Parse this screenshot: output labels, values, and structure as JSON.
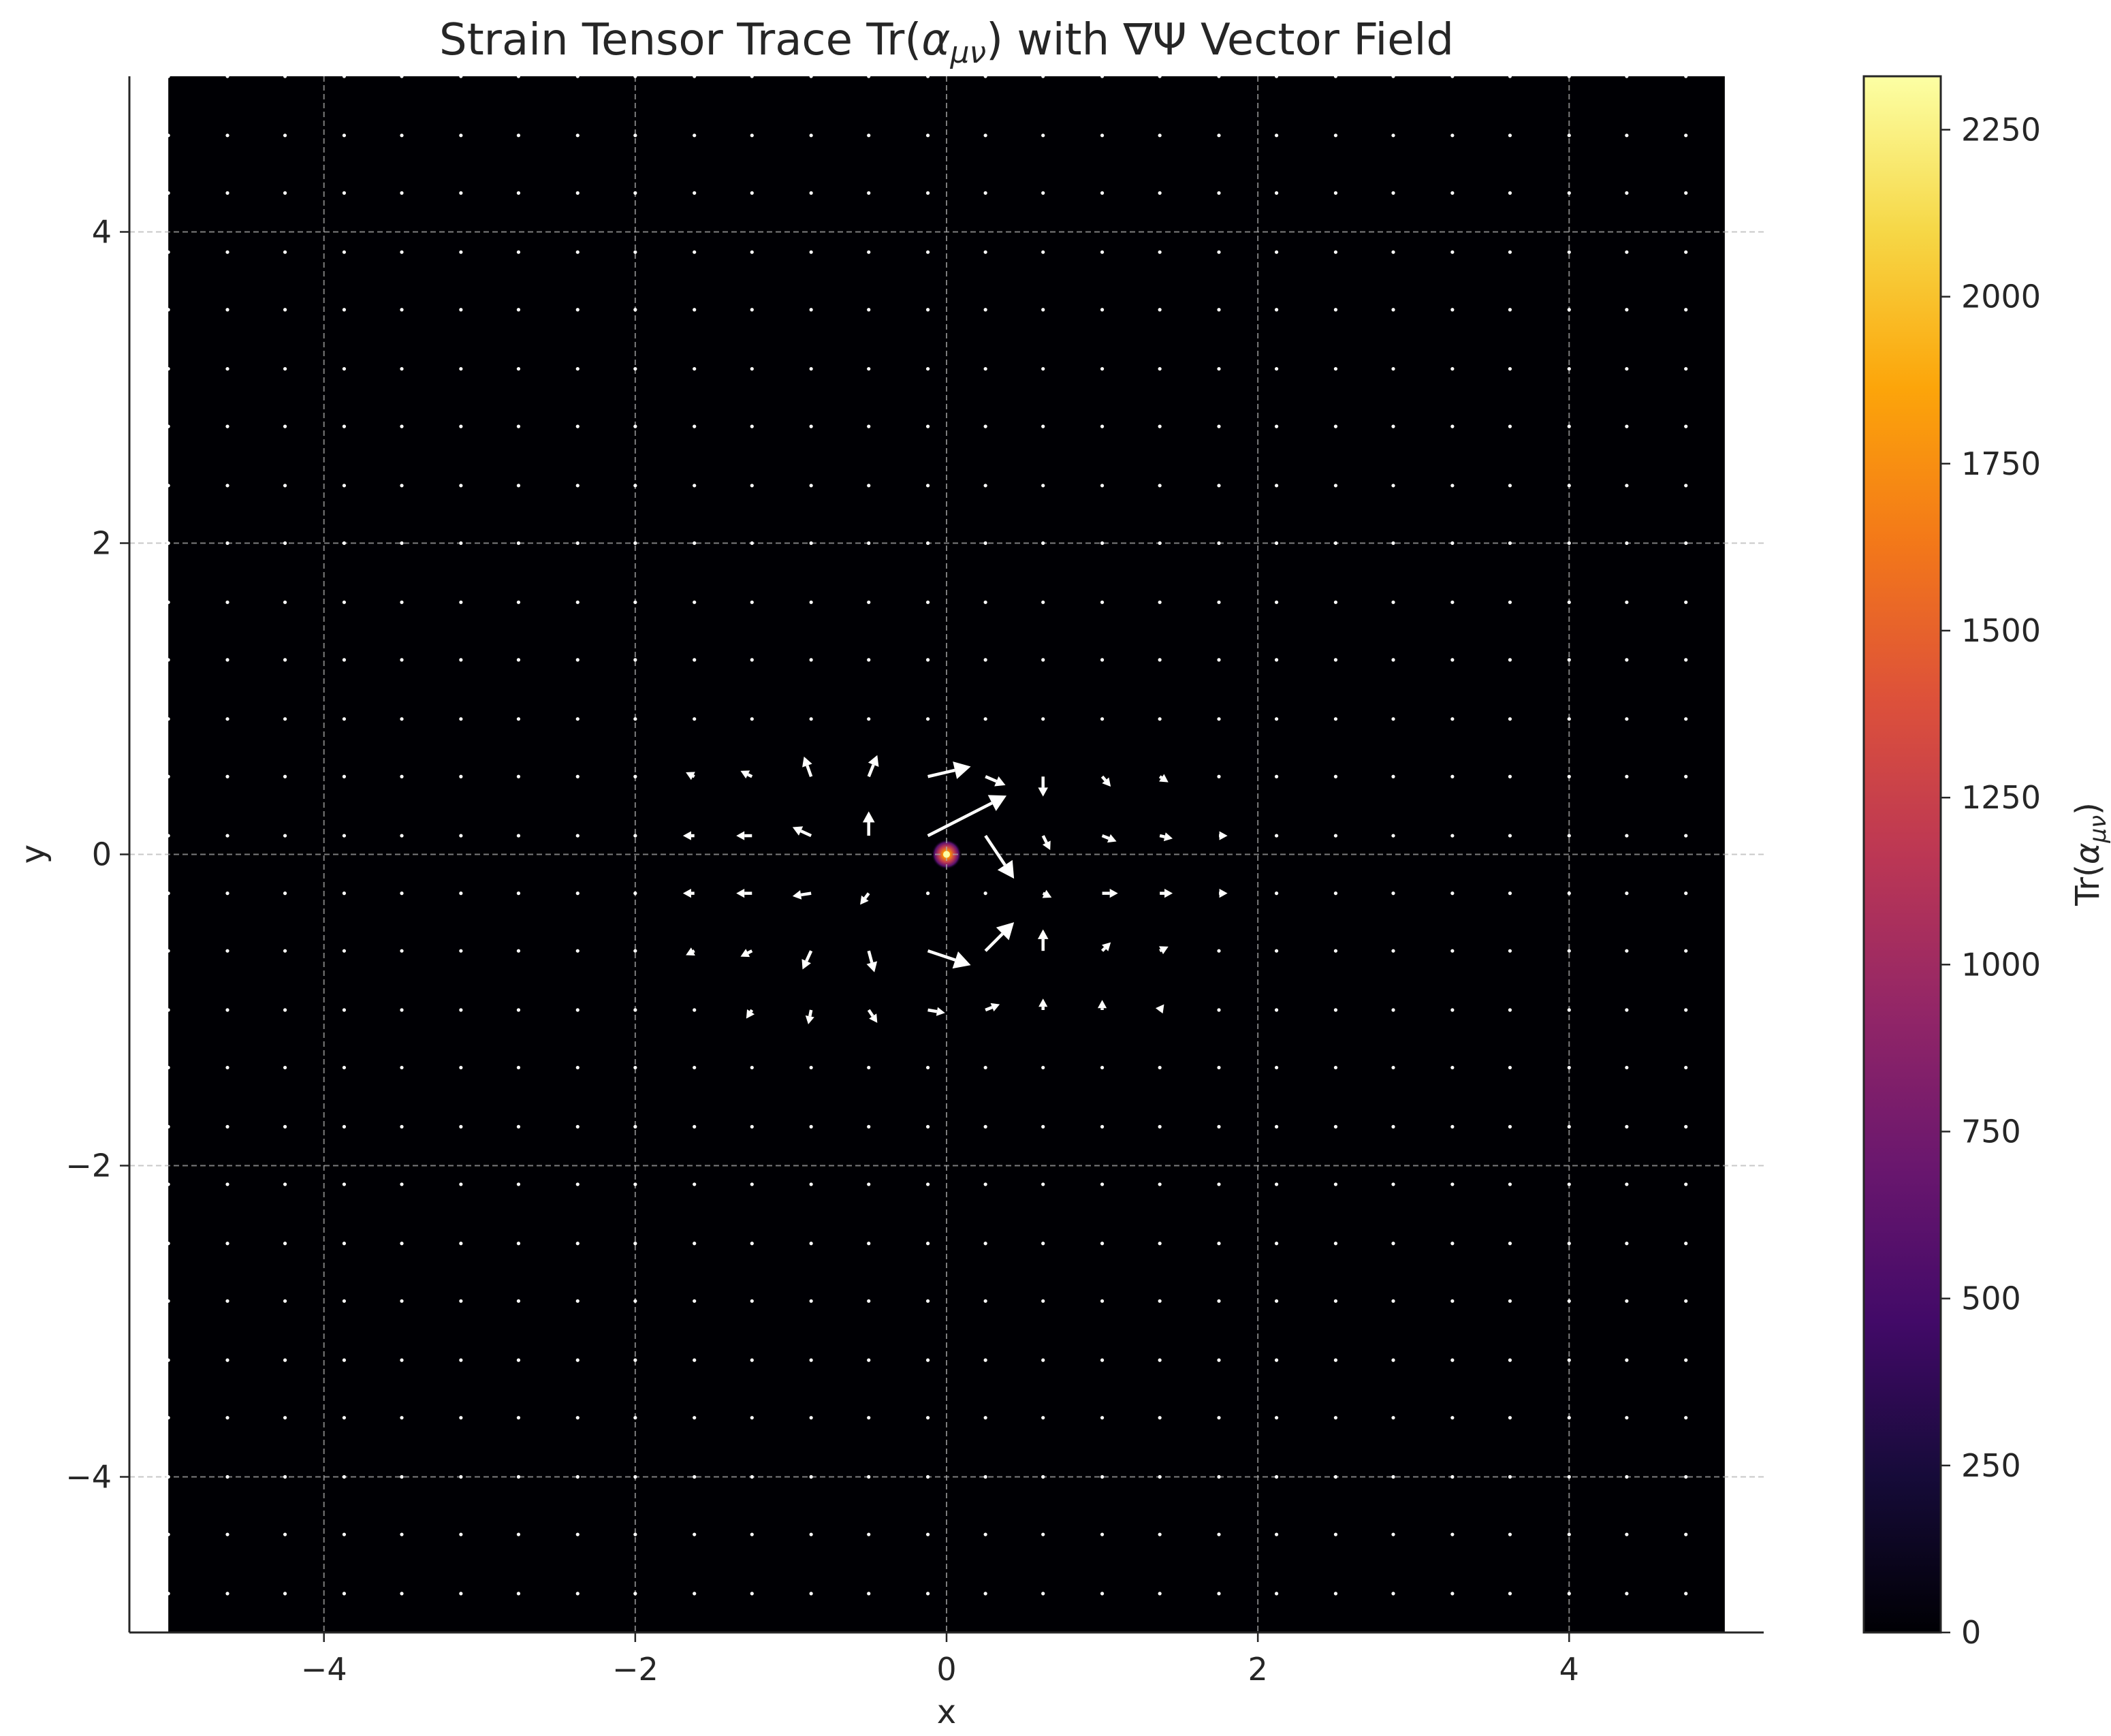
{
  "chart_data": {
    "type": "heatmap",
    "title": "Strain Tensor Trace Tr(",
    "title_symbol": "α",
    "title_subscript": "μν",
    "title_suffix": ") with ∇Ψ Vector Field",
    "xlabel": "x",
    "ylabel": "y",
    "xlim": [
      -5.25,
      5.25
    ],
    "ylim": [
      -5.0,
      5.0
    ],
    "image_extent": [
      -5.0,
      5.0,
      -5.0,
      5.0
    ],
    "xticks": [
      -4,
      -2,
      0,
      2,
      4
    ],
    "yticks": [
      -4,
      -2,
      0,
      2,
      4
    ],
    "xtick_labels": [
      "−4",
      "−2",
      "0",
      "2",
      "4"
    ],
    "ytick_labels": [
      "−4",
      "−2",
      "0",
      "2",
      "4"
    ],
    "grid": true,
    "colormap": "inferno",
    "colorbar": {
      "label": "Tr(",
      "label_symbol": "α",
      "label_subscript": "μν",
      "label_suffix": ")",
      "range": [
        0,
        2330
      ],
      "ticks": [
        0,
        250,
        500,
        750,
        1000,
        1250,
        1500,
        1750,
        2000,
        2250
      ],
      "tick_labels": [
        "0",
        "250",
        "500",
        "750",
        "1000",
        "1250",
        "1500",
        "1750",
        "2000",
        "2250"
      ]
    },
    "peak": {
      "x": 0,
      "y": 0,
      "value": 2330
    },
    "quiver": {
      "x": [
        -5.0,
        -4.62,
        -4.25,
        -3.87,
        -3.5,
        -3.12,
        -2.75,
        -2.37,
        -2.0,
        -1.62,
        -1.25,
        -0.87,
        -0.5,
        -0.12,
        0.25,
        0.62,
        1.0,
        1.37,
        1.75,
        2.12,
        2.5,
        2.87,
        3.25,
        3.62,
        4.0,
        4.37,
        4.75
      ],
      "y": [
        -4.75,
        -4.37,
        -4.0,
        -3.62,
        -3.25,
        -2.87,
        -2.5,
        -2.12,
        -1.75,
        -1.37,
        -1.0,
        -0.62,
        -0.25,
        0.12,
        0.5,
        0.87,
        1.25,
        1.62,
        2.0,
        2.37,
        2.75,
        3.12,
        3.5,
        3.87,
        4.25,
        4.62,
        5.0
      ],
      "color": "#ffffff",
      "arrows": [
        {
          "x": -1.62,
          "y": 0.5,
          "u": -0.06,
          "v": 0.03
        },
        {
          "x": -1.62,
          "y": 0.12,
          "u": -0.08,
          "v": 0.0
        },
        {
          "x": -1.62,
          "y": -0.25,
          "u": -0.08,
          "v": 0.0
        },
        {
          "x": -1.62,
          "y": -0.62,
          "u": -0.06,
          "v": -0.03
        },
        {
          "x": -1.25,
          "y": 1.0,
          "u": -0.04,
          "v": 0.06
        },
        {
          "x": -1.25,
          "y": 0.5,
          "u": -0.08,
          "v": 0.04
        },
        {
          "x": -1.25,
          "y": 0.12,
          "u": -0.11,
          "v": 0.0
        },
        {
          "x": -1.25,
          "y": -0.25,
          "u": -0.11,
          "v": 0.0
        },
        {
          "x": -1.25,
          "y": -0.62,
          "u": -0.08,
          "v": -0.04
        },
        {
          "x": -1.25,
          "y": -1.0,
          "u": -0.04,
          "v": -0.06
        },
        {
          "x": -0.87,
          "y": 1.0,
          "u": -0.02,
          "v": 0.1
        },
        {
          "x": -0.87,
          "y": 0.5,
          "u": -0.05,
          "v": 0.14
        },
        {
          "x": -0.87,
          "y": 0.12,
          "u": -0.13,
          "v": 0.06
        },
        {
          "x": -0.87,
          "y": -0.25,
          "u": -0.13,
          "v": -0.02
        },
        {
          "x": -0.87,
          "y": -0.62,
          "u": -0.06,
          "v": -0.13
        },
        {
          "x": -0.87,
          "y": -1.0,
          "u": -0.02,
          "v": -0.1
        },
        {
          "x": -0.5,
          "y": 1.0,
          "u": 0.06,
          "v": 0.09
        },
        {
          "x": -0.5,
          "y": 0.5,
          "u": 0.06,
          "v": 0.15
        },
        {
          "x": -0.5,
          "y": 0.12,
          "u": 0.0,
          "v": 0.17
        },
        {
          "x": -0.5,
          "y": -0.25,
          "u": -0.06,
          "v": -0.08
        },
        {
          "x": -0.5,
          "y": -0.62,
          "u": 0.04,
          "v": -0.15
        },
        {
          "x": -0.5,
          "y": -1.0,
          "u": 0.06,
          "v": -0.09
        },
        {
          "x": -0.12,
          "y": 1.0,
          "u": 0.1,
          "v": 0.0
        },
        {
          "x": -0.12,
          "y": 0.5,
          "u": 0.3,
          "v": 0.07
        },
        {
          "x": -0.12,
          "y": 0.12,
          "u": 0.55,
          "v": 0.28
        },
        {
          "x": -0.12,
          "y": -0.12,
          "u": 0.6,
          "v": -0.55
        },
        {
          "x": -0.12,
          "y": -0.62,
          "u": 0.3,
          "v": -0.1
        },
        {
          "x": -0.12,
          "y": -1.0,
          "u": 0.12,
          "v": -0.02
        },
        {
          "x": 0.25,
          "y": 1.0,
          "u": 0.09,
          "v": -0.05
        },
        {
          "x": 0.25,
          "y": 0.5,
          "u": 0.14,
          "v": -0.06
        },
        {
          "x": 0.25,
          "y": 0.12,
          "u": 0.2,
          "v": -0.3
        },
        {
          "x": 0.25,
          "y": -0.12,
          "u": 0.06,
          "v": 0.25
        },
        {
          "x": 0.25,
          "y": -0.62,
          "u": 0.2,
          "v": 0.2
        },
        {
          "x": 0.25,
          "y": -1.0,
          "u": 0.1,
          "v": 0.04
        },
        {
          "x": 0.62,
          "y": 1.0,
          "u": 0.0,
          "v": -0.1
        },
        {
          "x": 0.62,
          "y": 0.5,
          "u": 0.0,
          "v": -0.14
        },
        {
          "x": 0.62,
          "y": 0.12,
          "u": 0.05,
          "v": -0.1
        },
        {
          "x": 0.62,
          "y": -0.25,
          "u": 0.06,
          "v": -0.03
        },
        {
          "x": 0.62,
          "y": -0.62,
          "u": 0.0,
          "v": 0.15
        },
        {
          "x": 0.62,
          "y": -1.0,
          "u": 0.0,
          "v": 0.08
        },
        {
          "x": 1.0,
          "y": 1.0,
          "u": 0.0,
          "v": -0.07
        },
        {
          "x": 1.0,
          "y": 0.5,
          "u": 0.06,
          "v": -0.07
        },
        {
          "x": 1.0,
          "y": 0.12,
          "u": 0.1,
          "v": -0.04
        },
        {
          "x": 1.0,
          "y": -0.25,
          "u": 0.11,
          "v": 0.0
        },
        {
          "x": 1.0,
          "y": -0.62,
          "u": 0.06,
          "v": 0.06
        },
        {
          "x": 1.0,
          "y": -1.0,
          "u": 0.0,
          "v": 0.07
        },
        {
          "x": 1.37,
          "y": 0.5,
          "u": 0.06,
          "v": -0.04
        },
        {
          "x": 1.37,
          "y": 0.12,
          "u": 0.09,
          "v": -0.02
        },
        {
          "x": 1.37,
          "y": -0.25,
          "u": 0.09,
          "v": 0.0
        },
        {
          "x": 1.37,
          "y": -0.62,
          "u": 0.06,
          "v": 0.03
        },
        {
          "x": 1.37,
          "y": -1.0,
          "u": 0.03,
          "v": 0.04
        },
        {
          "x": 1.75,
          "y": 0.12,
          "u": 0.06,
          "v": 0.0
        },
        {
          "x": 1.75,
          "y": -0.25,
          "u": 0.06,
          "v": 0.0
        }
      ]
    }
  }
}
